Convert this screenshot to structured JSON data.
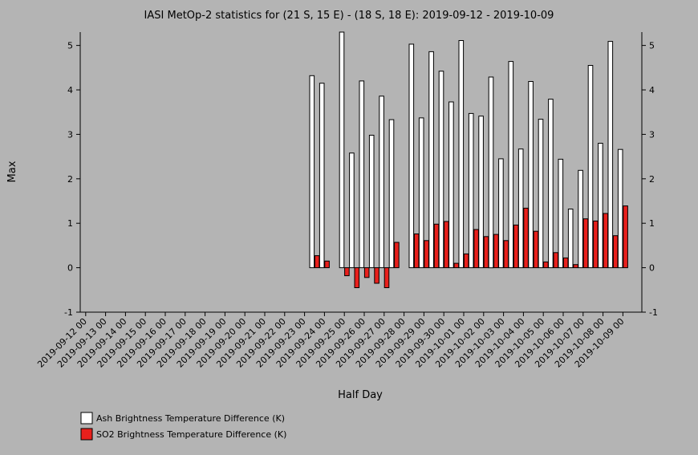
{
  "chart_data": {
    "type": "bar",
    "title": "IASI MetOp-2 statistics for (21 S, 15 E) - (18 S, 18 E): 2019-09-12 - 2019-10-09",
    "xlabel": "Half Day",
    "ylabel": "Max",
    "ylim": [
      -1,
      5.3
    ],
    "yticks": [
      -1,
      0,
      1,
      2,
      3,
      4,
      5
    ],
    "grid": false,
    "legend_position": "bottom-left",
    "x_tick_labels": [
      "2019-09-12 00",
      "2019-09-13 00",
      "2019-09-14 00",
      "2019-09-15 00",
      "2019-09-16 00",
      "2019-09-17 00",
      "2019-09-18 00",
      "2019-09-19 00",
      "2019-09-20 00",
      "2019-09-21 00",
      "2019-09-22 00",
      "2019-09-23 00",
      "2019-09-24 00",
      "2019-09-25 00",
      "2019-09-26 00",
      "2019-09-27 00",
      "2019-09-28 00",
      "2019-09-29 00",
      "2019-09-30 00",
      "2019-10-01 00",
      "2019-10-02 00",
      "2019-10-03 00",
      "2019-10-04 00",
      "2019-10-05 00",
      "2019-10-06 00",
      "2019-10-07 00",
      "2019-10-08 00",
      "2019-10-09 00"
    ],
    "x": [
      "2019-09-23 12",
      "2019-09-24 00",
      "2019-09-24 12",
      "2019-09-25 00",
      "2019-09-25 12",
      "2019-09-26 00",
      "2019-09-26 12",
      "2019-09-27 00",
      "2019-09-27 12",
      "2019-09-28 00",
      "2019-09-28 12",
      "2019-09-29 00",
      "2019-09-29 12",
      "2019-09-30 00",
      "2019-09-30 12",
      "2019-10-01 00",
      "2019-10-01 12",
      "2019-10-02 00",
      "2019-10-02 12",
      "2019-10-03 00",
      "2019-10-03 12",
      "2019-10-04 00",
      "2019-10-04 12",
      "2019-10-05 00",
      "2019-10-05 12",
      "2019-10-06 00",
      "2019-10-06 12",
      "2019-10-07 00",
      "2019-10-07 12",
      "2019-10-08 00",
      "2019-10-08 12",
      "2019-10-09 00"
    ],
    "series": [
      {
        "name": "Ash Brightness Temperature Difference (K)",
        "color": "#ffffff",
        "values": [
          4.32,
          4.15,
          null,
          5.3,
          2.58,
          4.2,
          2.98,
          3.86,
          3.33,
          null,
          5.03,
          3.37,
          4.86,
          4.42,
          3.73,
          5.11,
          3.47,
          3.41,
          4.29,
          2.45,
          4.64,
          2.67,
          4.19,
          3.34,
          3.79,
          2.44,
          1.32,
          2.19,
          4.55,
          2.8,
          5.09,
          2.66
        ]
      },
      {
        "name": "SO2 Brightness Temperature Difference (K)",
        "color": "#e8201c",
        "values": [
          0.27,
          0.15,
          null,
          -0.18,
          -0.45,
          -0.22,
          -0.35,
          -0.45,
          0.57,
          null,
          0.76,
          0.61,
          0.98,
          1.04,
          0.1,
          0.31,
          0.86,
          0.7,
          0.75,
          0.61,
          0.96,
          1.34,
          0.82,
          0.13,
          0.34,
          0.22,
          0.07,
          1.1,
          1.05,
          1.22,
          0.72,
          1.39
        ]
      }
    ]
  }
}
